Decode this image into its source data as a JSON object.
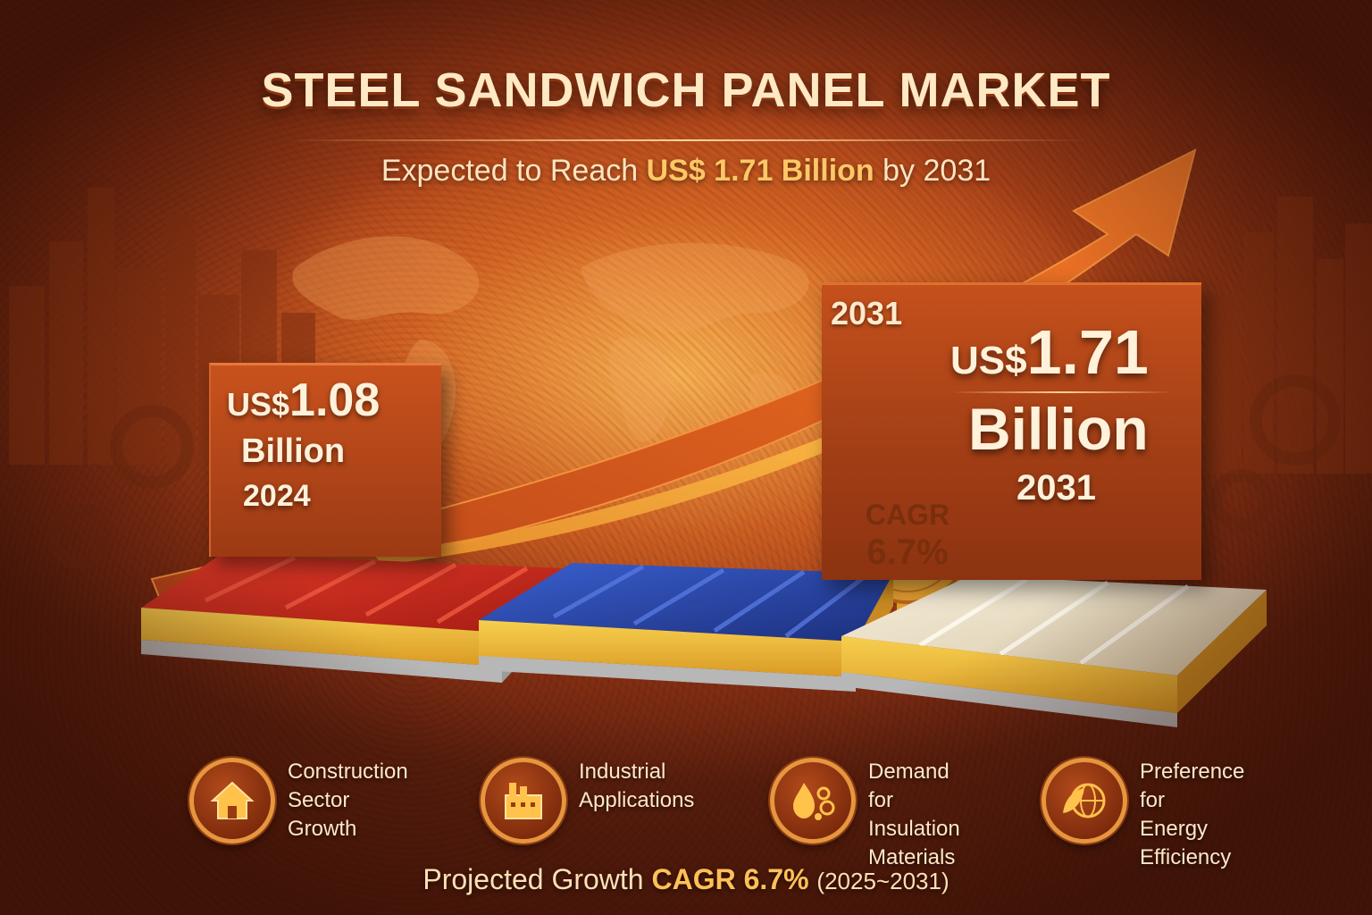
{
  "header": {
    "title": "STEEL SANDWICH PANEL MARKET",
    "subtitle_prefix": "Expected to Reach",
    "subtitle_value": "US$ 1.71 Billion",
    "subtitle_suffix": "by 2031"
  },
  "value_2024": {
    "currency": "US$",
    "amount": "1.08",
    "unit": "Billion",
    "year": "2024"
  },
  "value_2031": {
    "label_year": "2031",
    "currency": "US$",
    "amount": "1.71",
    "unit": "Billion",
    "year": "2031"
  },
  "cagr_badge": {
    "label": "CAGR",
    "value": "6.7%"
  },
  "panels": [
    {
      "name": "red",
      "color": "#c8281c"
    },
    {
      "name": "blue",
      "color": "#24439c"
    },
    {
      "name": "white",
      "color": "#e9dfc8"
    }
  ],
  "drivers": [
    {
      "icon": "house-icon",
      "lines": [
        "Construction",
        "Sector Growth"
      ]
    },
    {
      "icon": "factory-icon",
      "lines": [
        "Industrial",
        "Applications"
      ]
    },
    {
      "icon": "insulation-icon",
      "lines": [
        "Demand for",
        "Insulation",
        "Materials"
      ]
    },
    {
      "icon": "globe-leaf-icon",
      "lines": [
        "Preference for",
        "Energy Efficiency"
      ]
    }
  ],
  "footer": {
    "prefix": "Projected Growth",
    "value": "CAGR 6.7%",
    "period": "(2025~2031)"
  },
  "colors": {
    "background": "#b2461a",
    "accent": "#ffc766",
    "text": "#ffe9c4",
    "icon_ring": "#e6963e"
  }
}
